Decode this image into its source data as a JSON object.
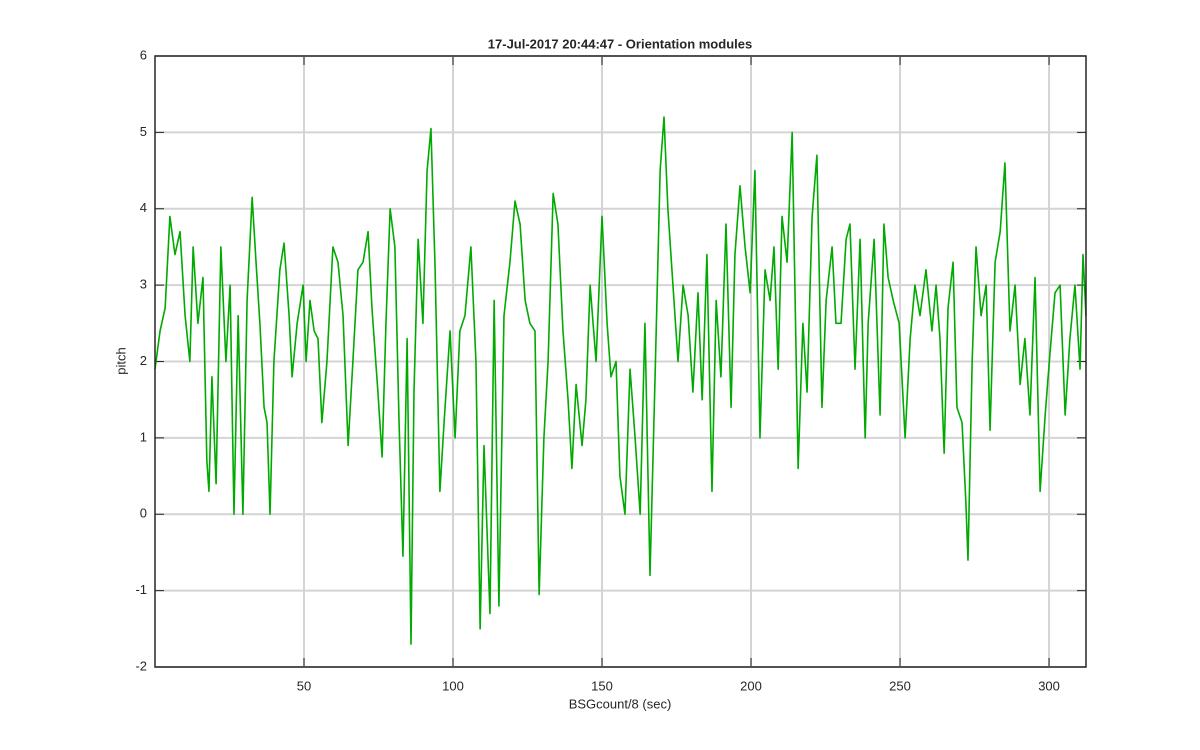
{
  "chart_data": {
    "type": "line",
    "title": "17-Jul-2017 20:44:47 - Orientation modules",
    "xlabel": "BSGcount/8 (sec)",
    "ylabel": "pitch",
    "color": "#00aa00",
    "grid": true,
    "xlim": [
      0,
      312.4
    ],
    "ylim": [
      -2,
      6
    ],
    "xticks": [
      50,
      100,
      150,
      200,
      250,
      300
    ],
    "yticks": [
      -2,
      -1,
      0,
      1,
      2,
      3,
      4,
      5,
      6
    ],
    "x": [
      0,
      1.7,
      3.4,
      5.0,
      6.7,
      8.4,
      10.1,
      11.7,
      12.8,
      14.4,
      16.1,
      17.4,
      18.1,
      19.1,
      20.5,
      22.1,
      23.8,
      25.2,
      26.5,
      27.9,
      29.5,
      30.9,
      32.6,
      33.9,
      35.2,
      36.6,
      37.6,
      38.6,
      39.9,
      41.9,
      43.3,
      45.0,
      46.0,
      47.7,
      49.7,
      50.7,
      52.0,
      53.4,
      54.7,
      56.0,
      57.7,
      59.7,
      61.4,
      63.1,
      64.8,
      66.4,
      68.1,
      69.8,
      71.5,
      72.8,
      74.8,
      76.2,
      77.5,
      78.9,
      80.5,
      81.9,
      83.2,
      84.6,
      85.9,
      86.9,
      88.3,
      89.9,
      91.3,
      92.6,
      94.0,
      95.6,
      97.0,
      99.0,
      100.7,
      102.3,
      104.0,
      106.0,
      107.7,
      109.1,
      110.4,
      112.4,
      113.8,
      115.4,
      117.1,
      119.1,
      120.8,
      122.5,
      124.2,
      125.8,
      127.5,
      128.9,
      130.5,
      131.9,
      133.6,
      135.2,
      136.9,
      138.6,
      139.9,
      141.3,
      143.3,
      144.6,
      146.0,
      148.0,
      150.0,
      151.7,
      153.0,
      154.7,
      156.0,
      157.7,
      159.4,
      161.1,
      162.8,
      164.4,
      166.1,
      167.8,
      169.5,
      170.8,
      172.1,
      173.8,
      175.5,
      177.2,
      178.9,
      180.5,
      182.2,
      183.6,
      185.2,
      186.9,
      188.3,
      189.9,
      191.6,
      193.3,
      194.6,
      196.3,
      198.0,
      199.7,
      201.3,
      203.0,
      204.7,
      206.4,
      207.7,
      209.1,
      210.4,
      212.1,
      213.8,
      215.8,
      217.4,
      218.8,
      220.5,
      222.1,
      223.8,
      225.2,
      227.2,
      228.5,
      230.2,
      231.9,
      233.2,
      234.9,
      236.6,
      238.3,
      239.3,
      241.3,
      243.3,
      244.6,
      246.0,
      247.7,
      249.7,
      251.7,
      253.4,
      255.0,
      256.7,
      258.7,
      260.7,
      262.1,
      263.4,
      264.8,
      266.1,
      267.8,
      269.1,
      270.8,
      272.1,
      272.8,
      274.2,
      275.5,
      277.2,
      278.9,
      280.2,
      281.9,
      283.6,
      285.2,
      286.9,
      288.6,
      290.3,
      291.9,
      293.6,
      295.3,
      297.0,
      298.7,
      300.3,
      302.0,
      303.7,
      305.4,
      307.0,
      308.7,
      310.4,
      311.4,
      312.4
    ],
    "values": [
      1.9,
      2.4,
      2.7,
      3.9,
      3.4,
      3.7,
      2.6,
      2.0,
      3.5,
      2.5,
      3.1,
      0.7,
      0.3,
      1.8,
      0.4,
      3.5,
      2.0,
      3.0,
      0.0,
      2.6,
      0.0,
      2.8,
      4.15,
      3.3,
      2.5,
      1.4,
      1.2,
      0.0,
      2.0,
      3.2,
      3.55,
      2.6,
      1.8,
      2.5,
      3.0,
      2.0,
      2.8,
      2.4,
      2.3,
      1.2,
      2.0,
      3.5,
      3.3,
      2.6,
      0.9,
      2.0,
      3.2,
      3.3,
      3.7,
      2.7,
      1.6,
      0.75,
      2.5,
      4.0,
      3.5,
      1.2,
      -0.55,
      2.3,
      -1.7,
      1.6,
      3.6,
      2.5,
      4.5,
      5.05,
      3.2,
      0.3,
      1.2,
      2.4,
      1.0,
      2.4,
      2.6,
      3.5,
      2.0,
      -1.5,
      0.9,
      -1.3,
      2.8,
      -1.2,
      2.6,
      3.3,
      4.1,
      3.8,
      2.8,
      2.5,
      2.4,
      -1.05,
      1.0,
      2.0,
      4.2,
      3.8,
      2.4,
      1.5,
      0.6,
      1.7,
      0.9,
      1.5,
      3.0,
      2.0,
      3.9,
      2.5,
      1.8,
      2.0,
      0.5,
      0.0,
      1.9,
      1.0,
      0.0,
      2.5,
      -0.8,
      1.8,
      4.5,
      5.2,
      4.0,
      3.0,
      2.0,
      3.0,
      2.6,
      1.6,
      2.9,
      1.5,
      3.4,
      0.3,
      2.8,
      1.8,
      3.8,
      1.4,
      3.4,
      4.3,
      3.5,
      2.9,
      4.5,
      1.0,
      3.2,
      2.8,
      3.5,
      1.9,
      3.9,
      3.3,
      5.0,
      0.6,
      2.5,
      1.6,
      3.9,
      4.7,
      1.4,
      2.8,
      3.5,
      2.5,
      2.5,
      3.6,
      3.8,
      1.9,
      3.6,
      1.0,
      2.5,
      3.6,
      1.3,
      3.8,
      3.1,
      2.8,
      2.5,
      1.0,
      2.3,
      3.0,
      2.6,
      3.2,
      2.4,
      3.0,
      2.3,
      0.8,
      2.7,
      3.3,
      1.4,
      1.2,
      0.15,
      -0.6,
      2.0,
      3.5,
      2.6,
      3.0,
      1.1,
      3.3,
      3.7,
      4.6,
      2.4,
      3.0,
      1.7,
      2.3,
      1.3,
      3.1,
      0.3,
      1.3,
      2.1,
      2.9,
      3.0,
      1.3,
      2.3,
      3.0,
      1.9,
      3.4,
      2.6
    ]
  }
}
